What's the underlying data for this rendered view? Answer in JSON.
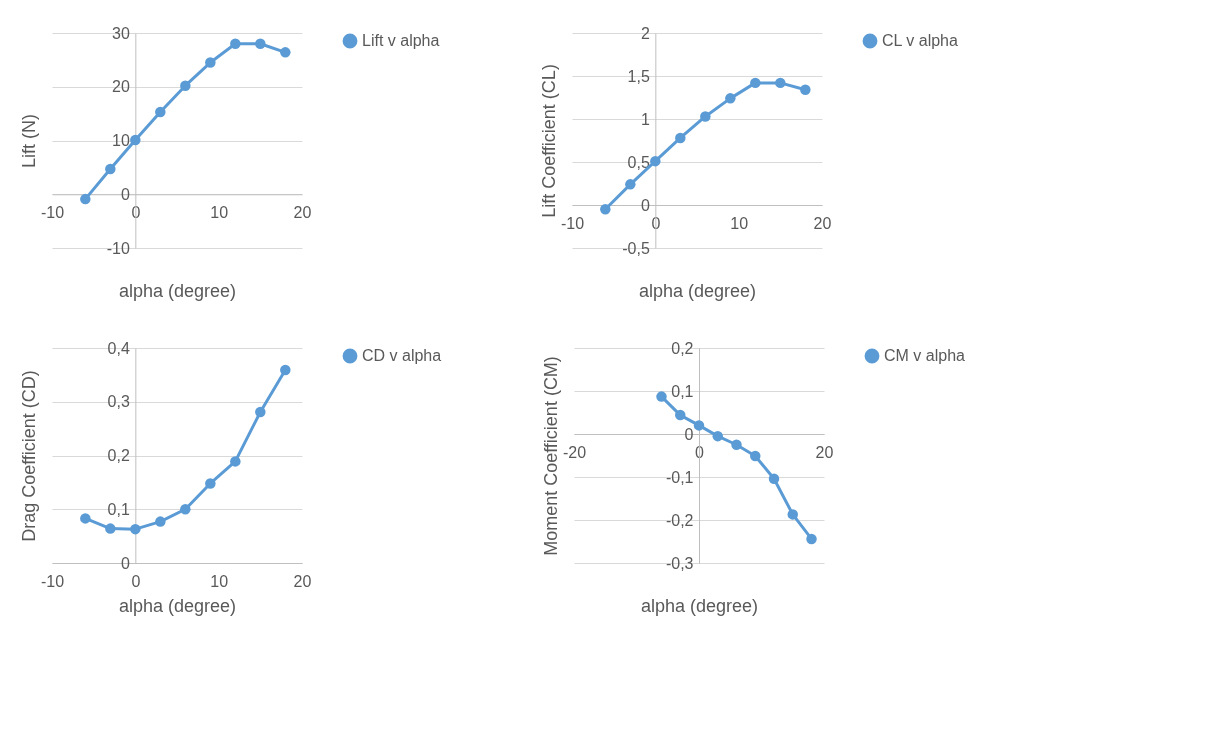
{
  "chart_data": [
    {
      "type": "line",
      "x": [
        -6,
        -3,
        0,
        3,
        6,
        9,
        12,
        15,
        18
      ],
      "xlabel": "alpha (degree)",
      "ylabel": "Lift (N)",
      "xlim": [
        -10,
        20
      ],
      "xticks": [
        -10,
        0,
        10,
        20
      ],
      "ylim": [
        -10,
        30
      ],
      "yticks": [
        -10,
        0,
        10,
        20,
        30
      ],
      "grid": "y",
      "legend": "right",
      "marker": "circle",
      "series": [
        {
          "name": "Lift v alpha",
          "color": "#5b9bd5",
          "values": [
            -0.9,
            4.7,
            10.1,
            15.3,
            20.2,
            24.5,
            28.0,
            28.0,
            26.4
          ]
        }
      ]
    },
    {
      "type": "line",
      "x": [
        -6,
        -3,
        0,
        3,
        6,
        9,
        12,
        15,
        18
      ],
      "xlabel": "alpha (degree)",
      "ylabel": "Lift Coefficient (CL)",
      "xlim": [
        -10,
        20
      ],
      "xticks": [
        -10,
        0,
        10,
        20
      ],
      "ylim": [
        -0.5,
        2
      ],
      "yticks": [
        {
          "value": -0.5,
          "label": "-0,5"
        },
        0,
        {
          "value": 0.5,
          "label": "0,5"
        },
        1,
        {
          "value": 1.5,
          "label": "1,5"
        },
        2
      ],
      "grid": "y",
      "legend": "right",
      "marker": "circle",
      "series": [
        {
          "name": "CL v alpha",
          "color": "#5b9bd5",
          "values": [
            -0.05,
            0.24,
            0.51,
            0.78,
            1.03,
            1.24,
            1.42,
            1.42,
            1.34
          ]
        }
      ]
    },
    {
      "type": "line",
      "x": [
        -6,
        -3,
        0,
        3,
        6,
        9,
        12,
        15,
        18
      ],
      "xlabel": "alpha (degree)",
      "ylabel": "Drag Coefficient (CD)",
      "xlim": [
        -10,
        20
      ],
      "xticks": [
        -10,
        0,
        10,
        20
      ],
      "ylim": [
        0,
        0.4
      ],
      "yticks": [
        0,
        {
          "value": 0.1,
          "label": "0,1"
        },
        {
          "value": 0.2,
          "label": "0,2"
        },
        {
          "value": 0.3,
          "label": "0,3"
        },
        {
          "value": 0.4,
          "label": "0,4"
        }
      ],
      "grid": "y",
      "legend": "right",
      "marker": "circle",
      "series": [
        {
          "name": "CD v alpha",
          "color": "#5b9bd5",
          "values": [
            0.083,
            0.064,
            0.063,
            0.077,
            0.1,
            0.148,
            0.189,
            0.281,
            0.359
          ]
        }
      ]
    },
    {
      "type": "line",
      "x": [
        -6,
        -3,
        0,
        3,
        6,
        9,
        12,
        15,
        18
      ],
      "xlabel": "alpha (degree)",
      "ylabel": "Moment Coefficient (CM)",
      "xlim": [
        -20,
        20
      ],
      "xticks": [
        -20,
        0,
        20
      ],
      "ylim": [
        -0.3,
        0.2
      ],
      "yticks": [
        {
          "value": -0.3,
          "label": "-0,3"
        },
        {
          "value": -0.2,
          "label": "-0,2"
        },
        {
          "value": -0.1,
          "label": "-0,1"
        },
        0,
        {
          "value": 0.1,
          "label": "0,1"
        },
        {
          "value": 0.2,
          "label": "0,2"
        }
      ],
      "grid": "y",
      "legend": "right",
      "marker": "circle",
      "series": [
        {
          "name": "CM v alpha",
          "color": "#5b9bd5",
          "values": [
            0.087,
            0.044,
            0.02,
            -0.005,
            -0.025,
            -0.051,
            -0.104,
            -0.187,
            -0.244
          ]
        }
      ]
    }
  ]
}
